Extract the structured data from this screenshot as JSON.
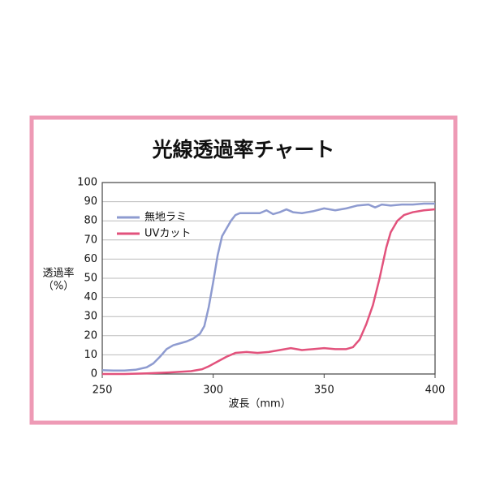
{
  "chart_data": {
    "type": "line",
    "title": "光線透過率チャート",
    "x_label": "波長（mm）",
    "y_label": [
      "透過率",
      "（%）"
    ],
    "xlim": [
      250,
      400
    ],
    "xticks": [
      250,
      300,
      350,
      400
    ],
    "ylim": [
      0,
      100
    ],
    "yticks": [
      0,
      10,
      20,
      30,
      40,
      50,
      60,
      70,
      80,
      90,
      100
    ],
    "grid": true,
    "legend": "upper left",
    "series": [
      {
        "name": "無地ラミ",
        "color": "#8e9bd0",
        "x": [
          250,
          255,
          260,
          265,
          270,
          273,
          276,
          279,
          282,
          285,
          288,
          291,
          294,
          296,
          298,
          300,
          302,
          304,
          306,
          308,
          310,
          312,
          315,
          318,
          321,
          324,
          327,
          330,
          333,
          336,
          340,
          345,
          350,
          355,
          360,
          365,
          370,
          373,
          376,
          380,
          385,
          390,
          395,
          400
        ],
        "values": [
          2,
          1.8,
          1.8,
          2.2,
          3.5,
          5.5,
          9,
          13,
          15,
          16,
          17,
          18.5,
          21,
          25,
          35,
          48,
          62,
          72,
          76,
          80,
          83,
          84,
          84,
          84,
          84,
          85.5,
          83.5,
          84.5,
          86,
          84.5,
          84,
          85,
          86.5,
          85.5,
          86.5,
          88,
          88.5,
          87,
          88.5,
          88,
          88.5,
          88.5,
          89,
          89
        ]
      },
      {
        "name": "UVカット",
        "color": "#e2527c",
        "x": [
          250,
          260,
          270,
          280,
          290,
          295,
          298,
          302,
          306,
          310,
          315,
          320,
          325,
          330,
          335,
          340,
          345,
          350,
          355,
          360,
          363,
          366,
          369,
          372,
          375,
          378,
          380,
          383,
          386,
          390,
          395,
          400
        ],
        "values": [
          0,
          0,
          0.3,
          0.8,
          1.5,
          2.5,
          4,
          6.5,
          9,
          11,
          11.5,
          11,
          11.5,
          12.5,
          13.5,
          12.5,
          13,
          13.5,
          13,
          13,
          14,
          18,
          26,
          36,
          50,
          66,
          74,
          80,
          83,
          84.5,
          85.5,
          86
        ]
      }
    ]
  }
}
